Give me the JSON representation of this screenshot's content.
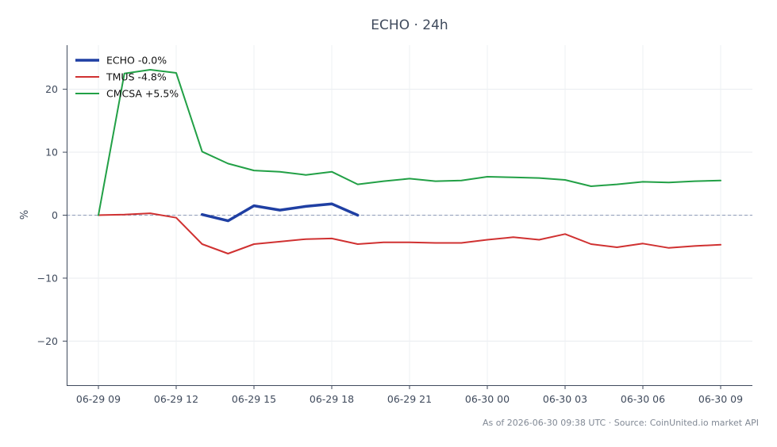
{
  "chart_data": {
    "type": "line",
    "title": "ECHO · 24h",
    "ylabel": "%",
    "xlabel": "",
    "ylim": [
      -27,
      27
    ],
    "x_tick_labels": [
      "06-29 09",
      "06-29 12",
      "06-29 15",
      "06-29 18",
      "06-29 21",
      "06-30 00",
      "06-30 03",
      "06-30 06",
      "06-30 09"
    ],
    "y_ticks": [
      -20,
      -10,
      0,
      10,
      20
    ],
    "y_tick_labels": [
      "−20",
      "−10",
      "0",
      "10",
      "20"
    ],
    "grid": true,
    "reference_line": 0,
    "legend_position": "top-left",
    "series": [
      {
        "name": "ECHO -0.0%",
        "color": "#1f3fa3",
        "x": [
          "06-29 13:00",
          "06-29 14:00",
          "06-29 15:00",
          "06-29 16:00",
          "06-29 17:00",
          "06-29 18:00",
          "06-29 19:00"
        ],
        "values": [
          0.1,
          -0.9,
          1.5,
          0.8,
          1.4,
          1.8,
          0.0
        ]
      },
      {
        "name": "TMUS -4.8%",
        "color": "#d03131",
        "x": [
          "06-29 09:00",
          "06-29 10:00",
          "06-29 11:00",
          "06-29 12:00",
          "06-29 13:00",
          "06-29 14:00",
          "06-29 15:00",
          "06-29 16:00",
          "06-29 17:00",
          "06-29 18:00",
          "06-29 19:00",
          "06-29 20:00",
          "06-29 21:00",
          "06-29 22:00",
          "06-29 23:00",
          "06-30 00:00",
          "06-30 01:00",
          "06-30 02:00",
          "06-30 03:00",
          "06-30 04:00",
          "06-30 05:00",
          "06-30 06:00",
          "06-30 07:00",
          "06-30 08:00",
          "06-30 09:00"
        ],
        "values": [
          0.0,
          0.1,
          0.3,
          -0.4,
          -4.6,
          -6.1,
          -4.6,
          -4.2,
          -3.8,
          -3.7,
          -4.6,
          -4.3,
          -4.3,
          -4.4,
          -4.4,
          -3.9,
          -3.5,
          -3.9,
          -3.0,
          -4.6,
          -5.1,
          -4.5,
          -5.2,
          -4.9,
          -4.7
        ]
      },
      {
        "name": "CMCSA +5.5%",
        "color": "#22a046",
        "x": [
          "06-29 09:00",
          "06-29 10:00",
          "06-29 11:00",
          "06-29 12:00",
          "06-29 13:00",
          "06-29 14:00",
          "06-29 15:00",
          "06-29 16:00",
          "06-29 17:00",
          "06-29 18:00",
          "06-29 19:00",
          "06-29 20:00",
          "06-29 21:00",
          "06-29 22:00",
          "06-29 23:00",
          "06-30 00:00",
          "06-30 01:00",
          "06-30 02:00",
          "06-30 03:00",
          "06-30 04:00",
          "06-30 05:00",
          "06-30 06:00",
          "06-30 07:00",
          "06-30 08:00",
          "06-30 09:00"
        ],
        "values": [
          0.0,
          22.5,
          23.1,
          22.6,
          10.1,
          8.2,
          7.1,
          6.9,
          6.4,
          6.9,
          4.9,
          5.4,
          5.8,
          5.4,
          5.5,
          6.1,
          6.0,
          5.9,
          5.6,
          4.6,
          4.9,
          5.3,
          5.2,
          5.4,
          5.5
        ]
      }
    ]
  },
  "footer": "As of 2026-06-30 09:38 UTC · Source: CoinUnited.io market API"
}
